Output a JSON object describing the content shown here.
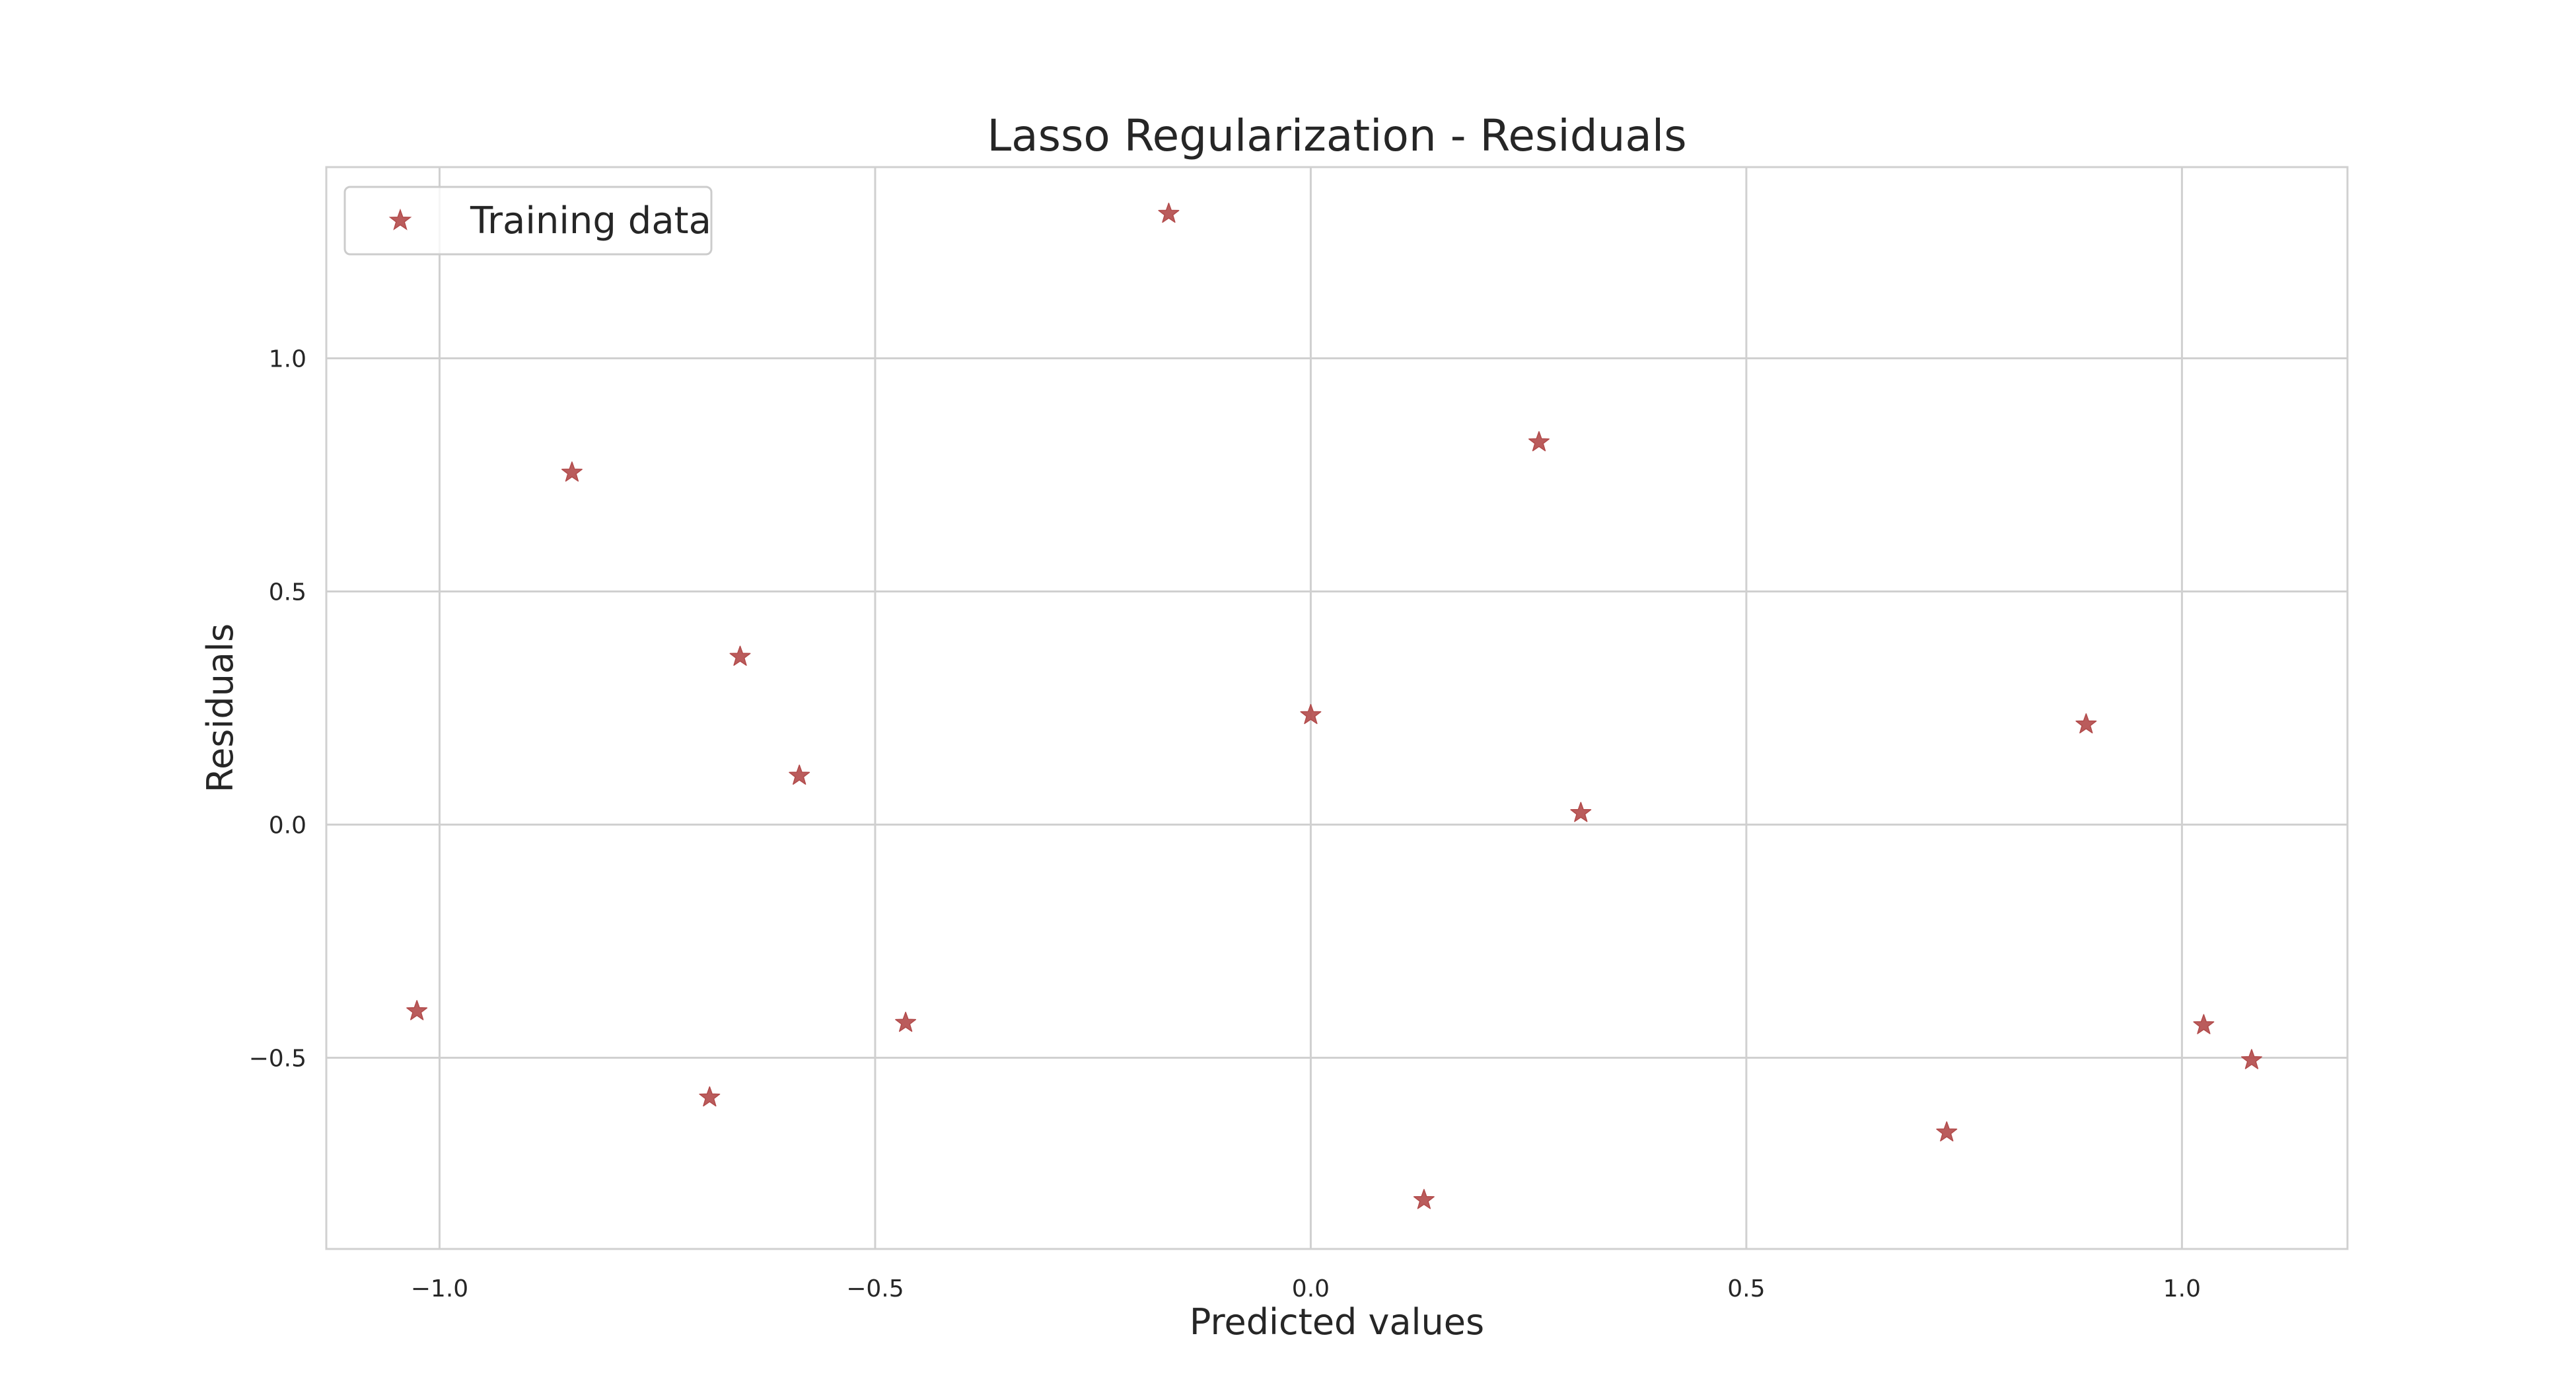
{
  "chart_data": {
    "type": "scatter",
    "title": "Lasso Regularization - Residuals",
    "xlabel": "Predicted values",
    "ylabel": "Residuals",
    "xlim": [
      -1.13,
      1.19
    ],
    "ylim": [
      -0.91,
      1.41
    ],
    "xticks": [
      -1.0,
      -0.5,
      0.0,
      0.5,
      1.0
    ],
    "xtick_labels": [
      "−1.0",
      "−0.5",
      "0.0",
      "0.5",
      "1.0"
    ],
    "yticks": [
      -0.5,
      0.0,
      0.5,
      1.0
    ],
    "ytick_labels": [
      "−0.5",
      "0.0",
      "0.5",
      "1.0"
    ],
    "grid": true,
    "legend_position": "top-left",
    "series": [
      {
        "name": "Training data",
        "marker": "star",
        "color": "#b24a4a",
        "points": [
          {
            "x": -1.026,
            "y": -0.4
          },
          {
            "x": -0.848,
            "y": 0.755
          },
          {
            "x": -0.69,
            "y": -0.585
          },
          {
            "x": -0.655,
            "y": 0.36
          },
          {
            "x": -0.587,
            "y": 0.105
          },
          {
            "x": -0.465,
            "y": -0.425
          },
          {
            "x": -0.163,
            "y": 1.31
          },
          {
            "x": 0.0,
            "y": 0.235
          },
          {
            "x": 0.13,
            "y": -0.805
          },
          {
            "x": 0.262,
            "y": 0.82
          },
          {
            "x": 0.31,
            "y": 0.025
          },
          {
            "x": 0.73,
            "y": -0.66
          },
          {
            "x": 0.89,
            "y": 0.215
          },
          {
            "x": 1.025,
            "y": -0.43
          },
          {
            "x": 1.08,
            "y": -0.505
          }
        ]
      }
    ]
  }
}
